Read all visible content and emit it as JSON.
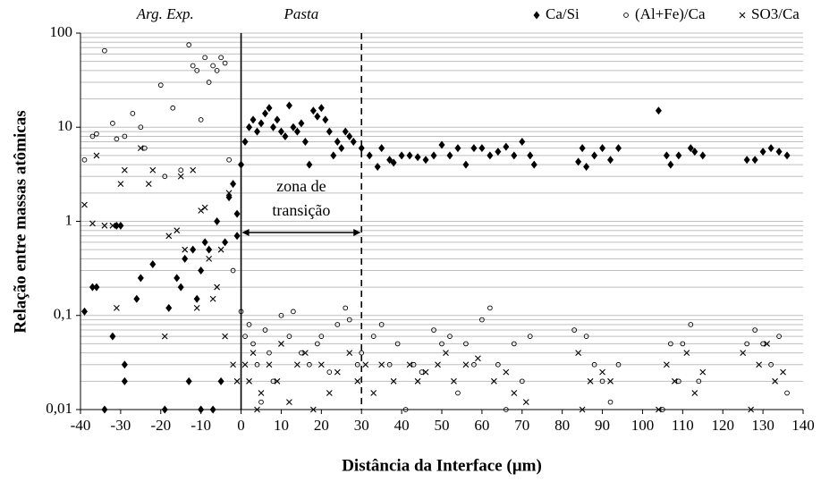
{
  "chart_data": {
    "type": "scatter",
    "xlabel": "Distância da Interface (µm)",
    "ylabel": "Relação entre massas atômicas",
    "region_labels": [
      "Arg. Exp.",
      "Pasta"
    ],
    "reference_lines": [
      0,
      30
    ],
    "transition_zone": {
      "label": [
        "zona de",
        "transição"
      ]
    },
    "xlim": [
      -40,
      140
    ],
    "xticks": [
      -40,
      -30,
      -20,
      -10,
      0,
      10,
      20,
      30,
      40,
      50,
      60,
      70,
      80,
      90,
      100,
      110,
      120,
      130,
      140
    ],
    "ylim": [
      0.01,
      100
    ],
    "yticks": [
      {
        "value": 0.01,
        "label": "0,01"
      },
      {
        "value": 0.1,
        "label": "0,1"
      },
      1,
      10,
      100
    ],
    "log_y": true,
    "grid": true,
    "legend": "top",
    "series": [
      {
        "name": "Ca/Si",
        "color": "#000000",
        "marker": "diamond",
        "x": [
          -39,
          -37,
          -36,
          -34,
          -32,
          -31,
          -30,
          -29,
          -29,
          -26,
          -25,
          -22,
          -19,
          -18,
          -16,
          -15,
          -14,
          -13,
          -12,
          -11,
          -10,
          -10,
          -9,
          -8,
          -7,
          -6,
          -5,
          -4,
          -3,
          -2,
          -1,
          0,
          -1,
          1,
          2,
          3,
          4,
          5,
          6,
          7,
          8,
          9,
          10,
          11,
          12,
          13,
          14,
          15,
          16,
          17,
          18,
          19,
          20,
          21,
          22,
          23,
          24,
          25,
          26,
          27,
          28,
          30,
          32,
          34,
          35,
          37,
          38,
          40,
          42,
          44,
          46,
          48,
          50,
          52,
          54,
          56,
          58,
          60,
          62,
          64,
          66,
          68,
          70,
          72,
          73,
          84,
          85,
          86,
          88,
          90,
          92,
          94,
          104,
          106,
          107,
          109,
          112,
          113,
          115,
          126,
          128,
          130,
          132,
          134,
          136
        ],
        "values": [
          0.11,
          0.2,
          0.2,
          0.01,
          0.06,
          0.9,
          0.9,
          0.03,
          0.02,
          0.15,
          0.25,
          0.35,
          0.01,
          0.12,
          0.25,
          0.2,
          0.4,
          0.02,
          0.5,
          0.15,
          0.01,
          0.3,
          0.6,
          0.5,
          0.01,
          1,
          0.02,
          0.6,
          1.8,
          2.5,
          0.7,
          4,
          1.2,
          7,
          10,
          12,
          9,
          11,
          14,
          16,
          10,
          12,
          9,
          8,
          17,
          10,
          9,
          11,
          7,
          4,
          15,
          13,
          16,
          12,
          9,
          5,
          7,
          6,
          9,
          8,
          7,
          6,
          5,
          3.8,
          6,
          4.5,
          4.2,
          5,
          5,
          4.8,
          4.5,
          5,
          6.5,
          5,
          6,
          4,
          6,
          6,
          5,
          5.5,
          6.2,
          5,
          7,
          5,
          4,
          4.3,
          6,
          3.8,
          5,
          6,
          4.5,
          6,
          15,
          5,
          4,
          5,
          6,
          5.5,
          5,
          4.5,
          4.5,
          5.5,
          6,
          5.5,
          5
        ]
      },
      {
        "name": "(Al+Fe)/Ca",
        "color": "#000000",
        "marker": "circle",
        "x": [
          -39,
          -37,
          -36,
          -34,
          -32,
          -31,
          -29,
          -27,
          -25,
          -24,
          -20,
          -19,
          -17,
          -15,
          -13,
          -12,
          -11,
          -10,
          -9,
          -8,
          -7,
          -6,
          -5,
          -4,
          -3,
          -2,
          0,
          1,
          2,
          3,
          4,
          5,
          6,
          7,
          8,
          10,
          12,
          13,
          15,
          17,
          19,
          20,
          22,
          24,
          26,
          27,
          29,
          30,
          33,
          35,
          37,
          39,
          41,
          43,
          45,
          48,
          50,
          52,
          54,
          56,
          58,
          60,
          62,
          64,
          66,
          68,
          70,
          72,
          83,
          86,
          88,
          90,
          92,
          94,
          105,
          107,
          109,
          110,
          112,
          114,
          126,
          128,
          130,
          132,
          134,
          136
        ],
        "values": [
          4.5,
          8,
          8.5,
          65,
          11,
          7.5,
          8,
          14,
          10,
          6,
          28,
          3,
          16,
          3.5,
          75,
          45,
          40,
          12,
          55,
          30,
          45,
          40,
          55,
          48,
          4.5,
          0.3,
          0.11,
          0.06,
          0.08,
          0.05,
          0.03,
          0.012,
          0.07,
          0.04,
          0.02,
          0.1,
          0.06,
          0.11,
          0.04,
          0.03,
          0.05,
          0.06,
          0.025,
          0.08,
          0.12,
          0.09,
          0.03,
          0.04,
          0.06,
          0.08,
          0.03,
          0.05,
          0.01,
          0.03,
          0.025,
          0.07,
          0.05,
          0.06,
          0.015,
          0.05,
          0.03,
          0.09,
          0.12,
          0.03,
          0.01,
          0.05,
          0.02,
          0.06,
          0.07,
          0.06,
          0.03,
          0.02,
          0.012,
          0.03,
          0.01,
          0.05,
          0.02,
          0.05,
          0.08,
          0.02,
          0.05,
          0.07,
          0.05,
          0.03,
          0.06,
          0.015
        ]
      },
      {
        "name": "SO3/Ca",
        "color": "#000000",
        "marker": "x",
        "x": [
          -39,
          -37,
          -36,
          -34,
          -32,
          -31,
          -30,
          -29,
          -25,
          -23,
          -22,
          -19,
          -18,
          -16,
          -15,
          -14,
          -12,
          -11,
          -10,
          -9,
          -8,
          -7,
          -6,
          -5,
          -4,
          -3,
          -2,
          -1,
          1,
          2,
          3,
          4,
          5,
          7,
          9,
          10,
          12,
          14,
          16,
          18,
          20,
          22,
          24,
          27,
          29,
          31,
          33,
          35,
          38,
          42,
          44,
          46,
          49,
          51,
          53,
          56,
          59,
          63,
          66,
          68,
          71,
          84,
          85,
          87,
          90,
          92,
          104,
          106,
          108,
          111,
          113,
          115,
          125,
          127,
          129,
          131,
          133,
          135
        ],
        "values": [
          1.5,
          0.95,
          5,
          0.9,
          0.9,
          0.12,
          2.5,
          3.5,
          6,
          2.5,
          3.5,
          0.06,
          0.7,
          0.8,
          3,
          0.5,
          3.5,
          0.12,
          1.3,
          1.4,
          0.4,
          0.15,
          0.2,
          0.5,
          0.06,
          2,
          0.03,
          0.02,
          0.03,
          0.02,
          0.04,
          0.01,
          0.015,
          0.03,
          0.02,
          0.05,
          0.012,
          0.03,
          0.04,
          0.01,
          0.03,
          0.015,
          0.025,
          0.04,
          0.02,
          0.03,
          0.015,
          0.03,
          0.02,
          0.03,
          0.02,
          0.025,
          0.03,
          0.04,
          0.02,
          0.03,
          0.035,
          0.02,
          0.025,
          0.015,
          0.012,
          0.04,
          0.01,
          0.02,
          0.025,
          0.02,
          0.01,
          0.03,
          0.02,
          0.04,
          0.015,
          0.025,
          0.04,
          0.01,
          0.03,
          0.05,
          0.02,
          0.025
        ]
      }
    ]
  }
}
